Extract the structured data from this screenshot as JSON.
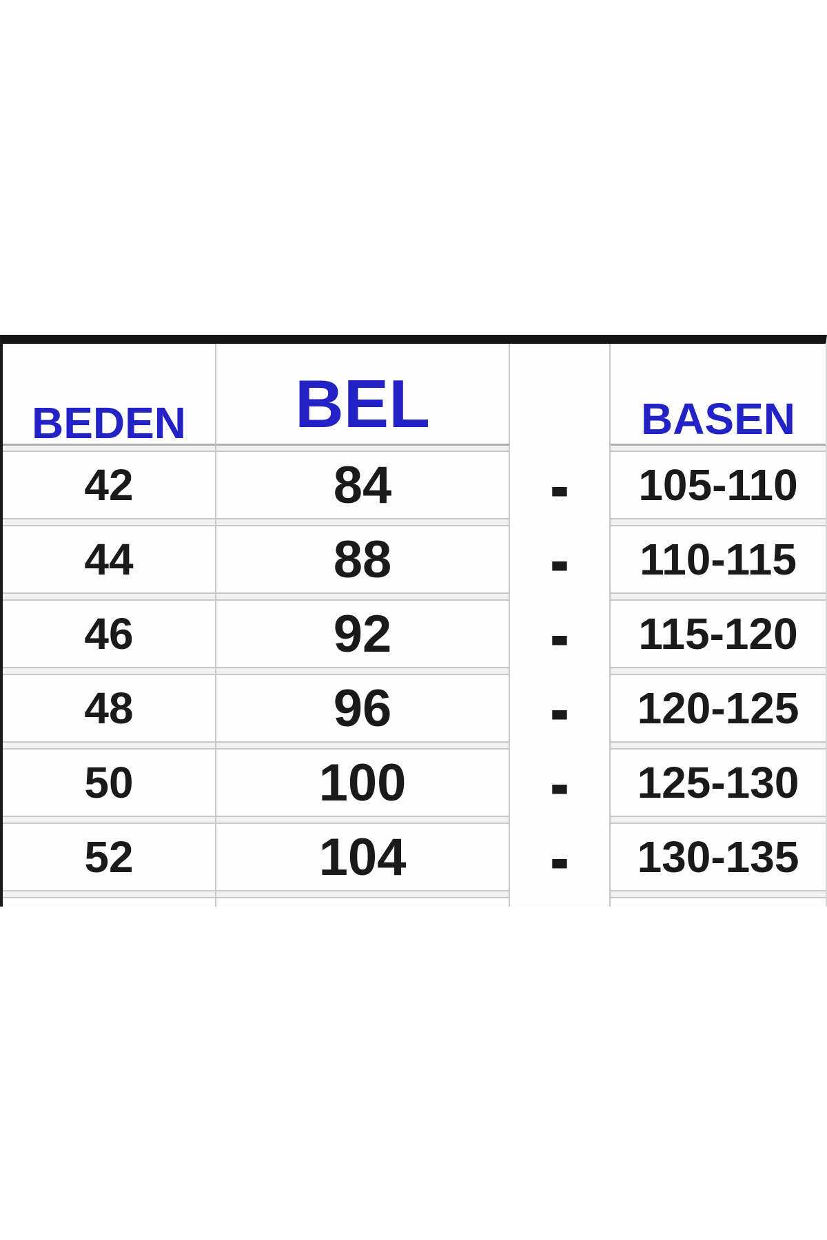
{
  "table": {
    "header": {
      "beden": "BEDEN",
      "bel": "BEL",
      "empty": "",
      "basen": "BASEN"
    },
    "rows": [
      {
        "beden": "42",
        "bel": "84",
        "dash": "-",
        "basen": "105-110"
      },
      {
        "beden": "44",
        "bel": "88",
        "dash": "-",
        "basen": "110-115"
      },
      {
        "beden": "46",
        "bel": "92",
        "dash": "-",
        "basen": "115-120"
      },
      {
        "beden": "48",
        "bel": "96",
        "dash": "-",
        "basen": "120-125"
      },
      {
        "beden": "50",
        "bel": "100",
        "dash": "-",
        "basen": "125-130"
      },
      {
        "beden": "52",
        "bel": "104",
        "dash": "-",
        "basen": "130-135"
      }
    ]
  },
  "colors": {
    "header_text": "#2222c6",
    "body_text": "#1a1a1a",
    "top_bar": "#141414",
    "gridline": "#c7c7c7",
    "separator_band_fill": "#f1f1f1",
    "cell_background": "#fdfdfd",
    "page_background": "#ffffff"
  }
}
